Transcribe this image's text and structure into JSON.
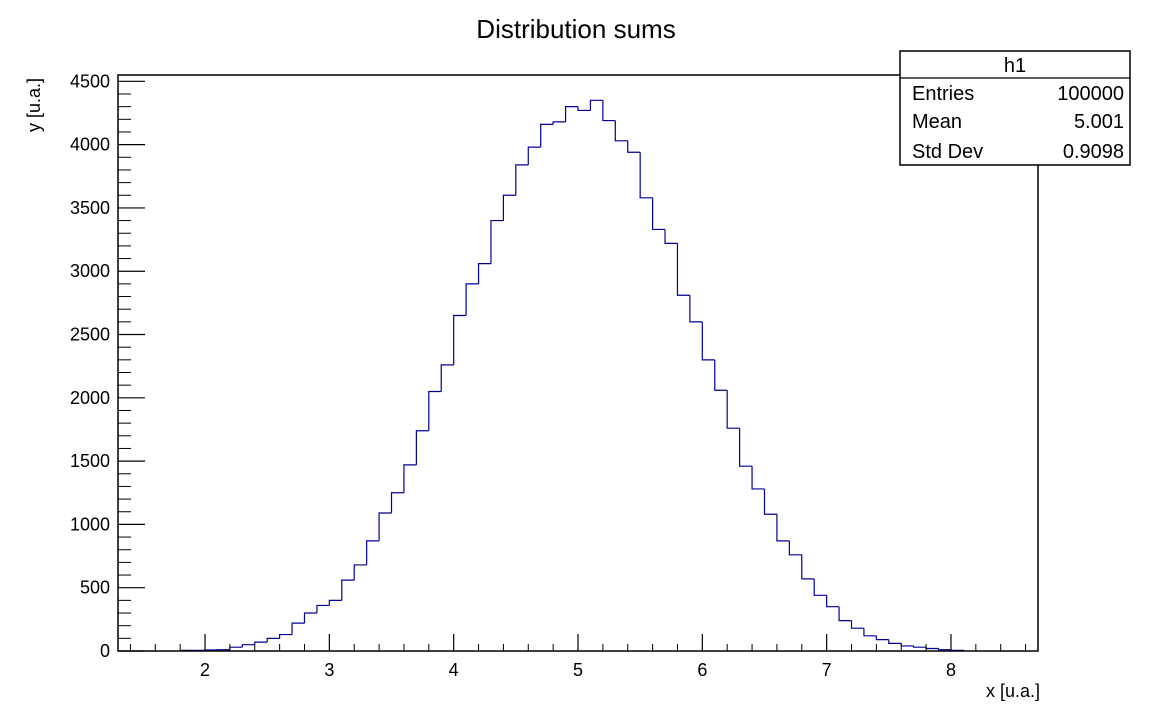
{
  "chart_data": {
    "type": "bar",
    "title": "Distribution sums",
    "xlabel": "x [u.a.]",
    "ylabel": "y [u.a.]",
    "xlim": [
      1.3,
      8.7
    ],
    "ylim": [
      0,
      4550
    ],
    "x_ticks": [
      2,
      3,
      4,
      5,
      6,
      7,
      8
    ],
    "y_ticks": [
      0,
      500,
      1000,
      1500,
      2000,
      2500,
      3000,
      3500,
      4000,
      4500
    ],
    "grid": false,
    "histogram": {
      "name": "h1",
      "color": "#000099",
      "bin_edges": [
        1.8,
        1.9,
        2.0,
        2.1,
        2.2,
        2.3,
        2.4,
        2.5,
        2.6,
        2.7,
        2.8,
        2.9,
        3.0,
        3.1,
        3.2,
        3.3,
        3.4,
        3.5,
        3.6,
        3.7,
        3.8,
        3.9,
        4.0,
        4.1,
        4.2,
        4.3,
        4.4,
        4.5,
        4.6,
        4.7,
        4.8,
        4.9,
        5.0,
        5.1,
        5.2,
        5.3,
        5.4,
        5.5,
        5.6,
        5.7,
        5.8,
        5.9,
        6.0,
        6.1,
        6.2,
        6.3,
        6.4,
        6.5,
        6.6,
        6.7,
        6.8,
        6.9,
        7.0,
        7.1,
        7.2,
        7.3,
        7.4,
        7.5,
        7.6,
        7.7,
        7.8,
        7.9,
        8.0,
        8.1
      ],
      "values": [
        5,
        5,
        8,
        10,
        30,
        50,
        70,
        100,
        130,
        220,
        300,
        360,
        400,
        560,
        680,
        870,
        1090,
        1250,
        1470,
        1740,
        2050,
        2260,
        2650,
        2900,
        3060,
        3400,
        3600,
        3840,
        3980,
        4160,
        4180,
        4300,
        4270,
        4350,
        4190,
        4030,
        3940,
        3580,
        3330,
        3220,
        2810,
        2600,
        2300,
        2060,
        1760,
        1460,
        1280,
        1080,
        870,
        760,
        570,
        440,
        350,
        240,
        180,
        120,
        90,
        60,
        40,
        30,
        20,
        10,
        5
      ]
    },
    "stats_box": {
      "title": "h1",
      "rows": [
        {
          "label": "Entries",
          "value": "100000"
        },
        {
          "label": "Mean",
          "value": "5.001"
        },
        {
          "label": "Std Dev",
          "value": "0.9098"
        }
      ],
      "placement": "top-right"
    }
  }
}
